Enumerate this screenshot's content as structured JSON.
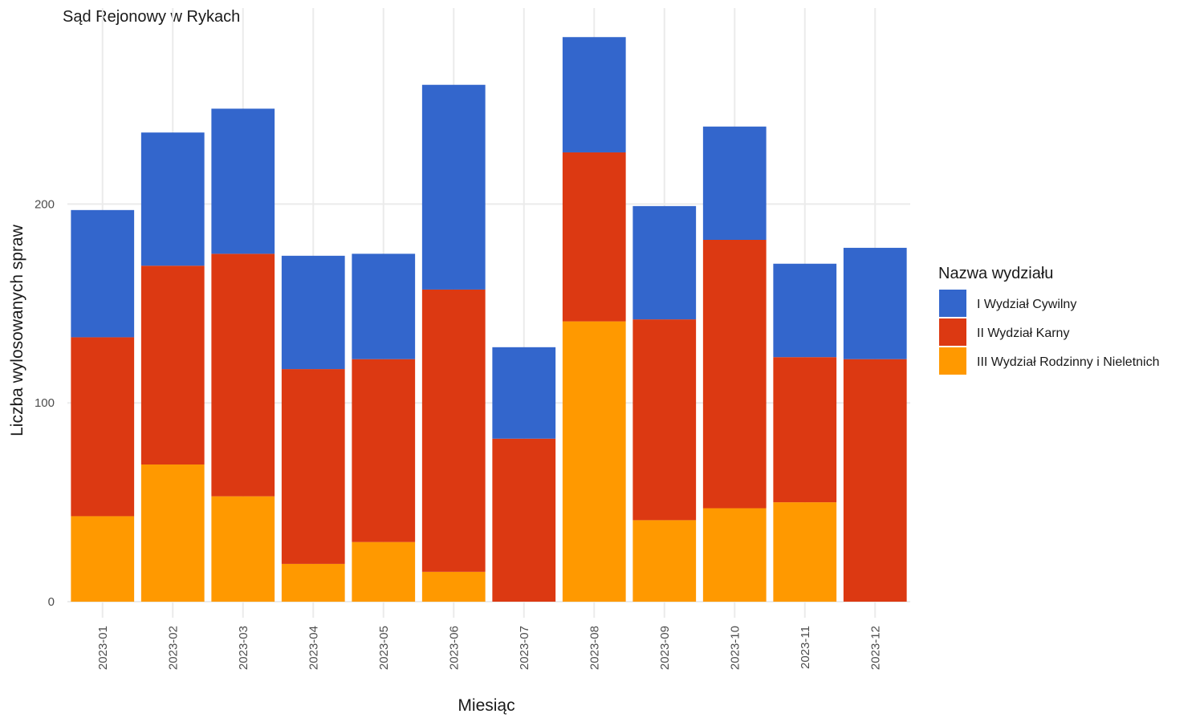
{
  "chart_data": {
    "type": "bar",
    "stacked": true,
    "title": "Sąd Rejonowy w Rykach",
    "xlabel": "Miesiąc",
    "ylabel": "Liczba wylosowanych spraw",
    "ylim": [
      0,
      300
    ],
    "yticks": [
      0,
      100,
      200
    ],
    "grid": true,
    "legend_position": "right",
    "legend_title": "Nazwa wydziału",
    "categories": [
      "2023-01",
      "2023-02",
      "2023-03",
      "2023-04",
      "2023-05",
      "2023-06",
      "2023-07",
      "2023-08",
      "2023-09",
      "2023-10",
      "2023-11",
      "2023-12"
    ],
    "series": [
      {
        "name": "I Wydział Cywilny",
        "color": "#3366CC",
        "values": [
          64,
          67,
          73,
          57,
          53,
          103,
          46,
          58,
          57,
          57,
          47,
          56
        ]
      },
      {
        "name": "II Wydział Karny",
        "color": "#DC3912",
        "values": [
          90,
          100,
          122,
          98,
          92,
          142,
          82,
          85,
          101,
          135,
          73,
          122
        ]
      },
      {
        "name": "III Wydział Rodzinny i Nieletnich",
        "color": "#FF9900",
        "values": [
          43,
          69,
          53,
          19,
          30,
          15,
          0,
          141,
          41,
          47,
          50,
          0
        ]
      }
    ]
  }
}
